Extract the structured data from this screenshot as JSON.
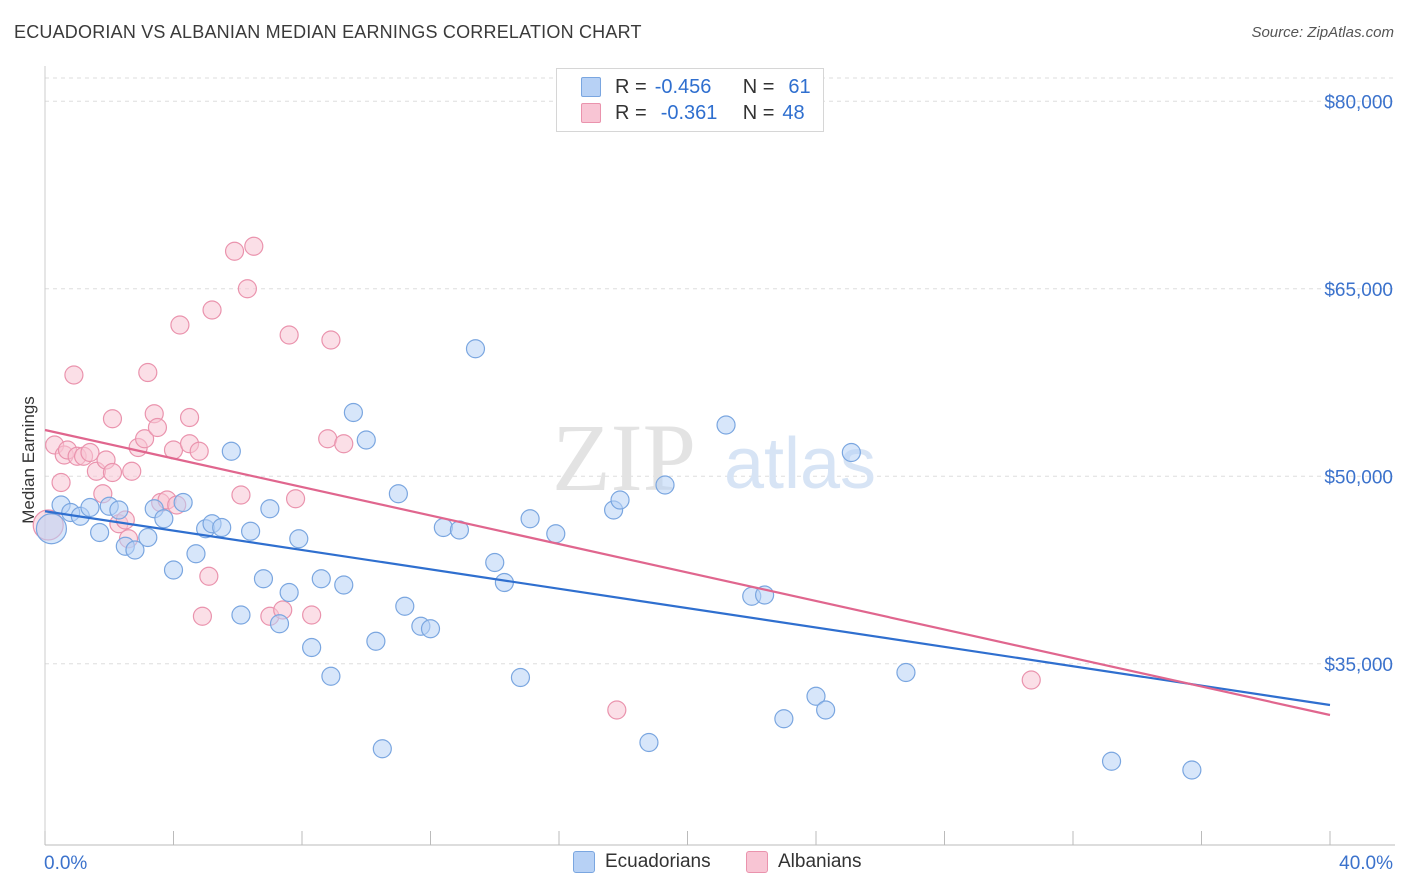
{
  "title": "ECUADORIAN VS ALBANIAN MEDIAN EARNINGS CORRELATION CHART",
  "source": "Source: ZipAtlas.com",
  "watermark": {
    "zip": "ZIP",
    "atlas": "atlas"
  },
  "legend_top": [
    {
      "r_label": "R =",
      "r_value": "-0.456",
      "n_label": "N =",
      "n_value": "61"
    },
    {
      "r_label": "R =",
      "r_value": "-0.361",
      "n_label": "N =",
      "n_value": "48"
    }
  ],
  "bottom_legend": {
    "ecuadorians": "Ecuadorians",
    "albanians": "Albanians"
  },
  "colors": {
    "ecuadorians_fill": "#b7d1f5",
    "ecuadorians_edge": "#7aa6e0",
    "ecuadorians_line": "#2f6fcf",
    "albanians_fill": "#f8c5d4",
    "albanians_edge": "#ea93ad",
    "albanians_line": "#e0668e",
    "tick_label": "#3b72cc"
  },
  "chart_data": {
    "type": "scatter",
    "title": "ECUADORIAN VS ALBANIAN MEDIAN EARNINGS CORRELATION CHART",
    "xlabel": "",
    "ylabel": "Median Earnings",
    "xlim": [
      0,
      40
    ],
    "ylim": [
      20500,
      82500
    ],
    "x_tick_labels": {
      "left": "0.0%",
      "right": "40.0%"
    },
    "y_ticks": [
      {
        "value": 80000,
        "label": "$80,000"
      },
      {
        "value": 65000,
        "label": "$65,000"
      },
      {
        "value": 50000,
        "label": "$50,000"
      },
      {
        "value": 35000,
        "label": "$35,000"
      }
    ],
    "grid": true,
    "series": [
      {
        "name": "Ecuadorians",
        "trend": {
          "x": [
            0,
            40
          ],
          "y": [
            47200,
            31700
          ]
        },
        "points": [
          [
            0.2,
            45800
          ],
          [
            0.5,
            47700
          ],
          [
            0.8,
            47100
          ],
          [
            1.1,
            46800
          ],
          [
            1.4,
            47500
          ],
          [
            1.7,
            45500
          ],
          [
            2.0,
            47600
          ],
          [
            2.3,
            47300
          ],
          [
            2.5,
            44400
          ],
          [
            2.8,
            44100
          ],
          [
            3.2,
            45100
          ],
          [
            3.4,
            47400
          ],
          [
            3.7,
            46600
          ],
          [
            4.0,
            42500
          ],
          [
            4.3,
            47900
          ],
          [
            4.7,
            43800
          ],
          [
            5.0,
            45800
          ],
          [
            5.2,
            46200
          ],
          [
            5.5,
            45900
          ],
          [
            5.8,
            52000
          ],
          [
            6.1,
            38900
          ],
          [
            6.4,
            45600
          ],
          [
            6.8,
            41800
          ],
          [
            7.0,
            47400
          ],
          [
            7.3,
            38200
          ],
          [
            7.6,
            40700
          ],
          [
            7.9,
            45000
          ],
          [
            8.3,
            36300
          ],
          [
            8.6,
            41800
          ],
          [
            8.9,
            34000
          ],
          [
            9.3,
            41300
          ],
          [
            9.6,
            55100
          ],
          [
            10.0,
            52900
          ],
          [
            10.3,
            36800
          ],
          [
            10.5,
            28200
          ],
          [
            11.0,
            48600
          ],
          [
            11.2,
            39600
          ],
          [
            11.7,
            38000
          ],
          [
            12.0,
            37800
          ],
          [
            12.4,
            45900
          ],
          [
            12.9,
            45700
          ],
          [
            13.4,
            60200
          ],
          [
            14.0,
            43100
          ],
          [
            14.3,
            41500
          ],
          [
            14.8,
            33900
          ],
          [
            15.1,
            46600
          ],
          [
            15.9,
            45400
          ],
          [
            17.7,
            47300
          ],
          [
            17.9,
            48100
          ],
          [
            18.8,
            28700
          ],
          [
            19.3,
            49300
          ],
          [
            21.2,
            54100
          ],
          [
            22.0,
            40400
          ],
          [
            22.4,
            40500
          ],
          [
            23.0,
            30600
          ],
          [
            24.0,
            32400
          ],
          [
            24.3,
            31300
          ],
          [
            25.1,
            51900
          ],
          [
            26.8,
            34300
          ],
          [
            33.2,
            27200
          ],
          [
            35.7,
            26500
          ]
        ]
      },
      {
        "name": "Albanians",
        "trend": {
          "x": [
            0,
            40
          ],
          "y": [
            53700,
            30900
          ]
        },
        "points": [
          [
            0.1,
            46100
          ],
          [
            0.3,
            52500
          ],
          [
            0.5,
            49500
          ],
          [
            0.6,
            51700
          ],
          [
            0.7,
            52100
          ],
          [
            0.9,
            58100
          ],
          [
            1.0,
            51600
          ],
          [
            1.2,
            51600
          ],
          [
            1.4,
            51900
          ],
          [
            1.6,
            50400
          ],
          [
            1.8,
            48600
          ],
          [
            1.9,
            51300
          ],
          [
            2.1,
            50300
          ],
          [
            2.1,
            54600
          ],
          [
            2.3,
            46200
          ],
          [
            2.5,
            46500
          ],
          [
            2.6,
            45000
          ],
          [
            2.7,
            50400
          ],
          [
            2.9,
            52300
          ],
          [
            3.1,
            53000
          ],
          [
            3.2,
            58300
          ],
          [
            3.4,
            55000
          ],
          [
            3.5,
            53900
          ],
          [
            3.6,
            47900
          ],
          [
            3.8,
            48100
          ],
          [
            4.0,
            52100
          ],
          [
            4.1,
            47700
          ],
          [
            4.2,
            62100
          ],
          [
            4.5,
            52600
          ],
          [
            4.5,
            54700
          ],
          [
            4.8,
            52000
          ],
          [
            4.9,
            38800
          ],
          [
            5.1,
            42000
          ],
          [
            5.2,
            63300
          ],
          [
            5.9,
            68000
          ],
          [
            6.1,
            48500
          ],
          [
            6.3,
            65000
          ],
          [
            6.5,
            68400
          ],
          [
            7.0,
            38800
          ],
          [
            7.4,
            39300
          ],
          [
            7.6,
            61300
          ],
          [
            7.8,
            48200
          ],
          [
            8.3,
            38900
          ],
          [
            8.8,
            53000
          ],
          [
            8.9,
            60900
          ],
          [
            9.3,
            52600
          ],
          [
            17.8,
            31300
          ],
          [
            30.7,
            33700
          ]
        ]
      }
    ]
  }
}
